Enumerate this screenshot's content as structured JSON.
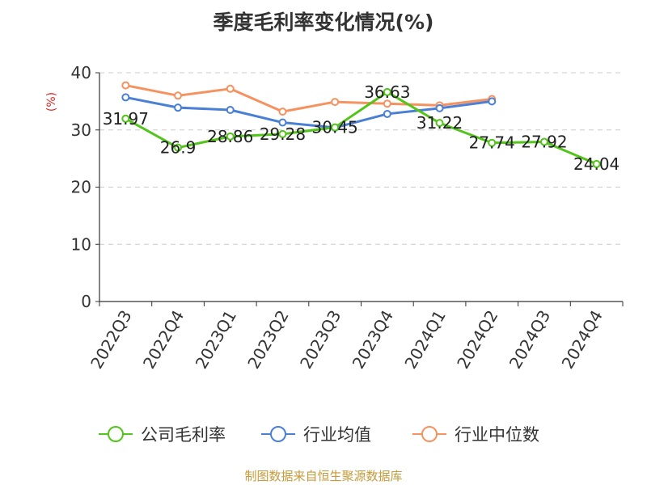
{
  "chart_data": {
    "type": "line",
    "title": "季度毛利率变化情况(%)",
    "ylabel": "(%)",
    "ylim": [
      0,
      40
    ],
    "yticks": [
      0,
      10,
      20,
      30,
      40
    ],
    "grid": true,
    "legend_position": "bottom",
    "categories": [
      "2022Q3",
      "2022Q4",
      "2023Q1",
      "2023Q2",
      "2023Q3",
      "2023Q4",
      "2024Q1",
      "2024Q2",
      "2024Q3",
      "2024Q4"
    ],
    "series": [
      {
        "name": "公司毛利率",
        "color": "#52c41a",
        "values": [
          31.97,
          26.9,
          28.86,
          29.28,
          30.45,
          36.63,
          31.22,
          27.74,
          27.92,
          24.04
        ],
        "labels": [
          "31.97",
          "26.9",
          "28.86",
          "29.28",
          "30.45",
          "36.63",
          "31.22",
          "27.74",
          "27.92",
          "24.04"
        ]
      },
      {
        "name": "行业均值",
        "color": "#4a7fd6",
        "values": [
          35.7,
          33.9,
          33.5,
          31.3,
          30.4,
          32.8,
          33.8,
          35.0,
          null,
          null
        ]
      },
      {
        "name": "行业中位数",
        "color": "#f5925f",
        "values": [
          37.8,
          36.0,
          37.2,
          33.2,
          34.9,
          34.6,
          34.3,
          35.4,
          null,
          null
        ]
      }
    ]
  },
  "source_text": "制图数据来自恒生聚源数据库"
}
